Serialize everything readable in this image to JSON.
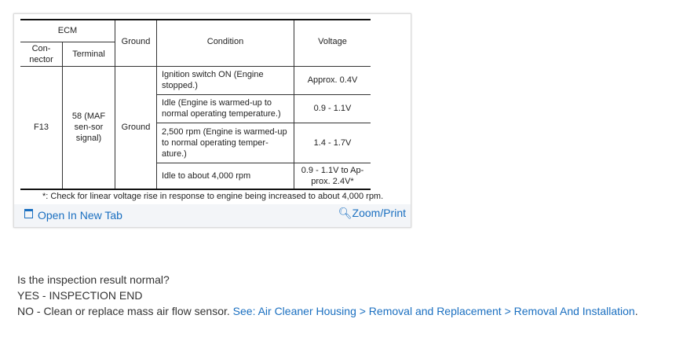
{
  "table": {
    "header": {
      "ecm": "ECM",
      "connector": "Con-\nnector",
      "terminal": "Terminal",
      "ground": "Ground",
      "condition": "Condition",
      "voltage": "Voltage"
    },
    "connector": "F13",
    "terminal": "58 (MAF sen-sor signal)",
    "ground": "Ground",
    "rows": [
      {
        "condition": "Ignition switch ON (Engine stopped.)",
        "voltage": "Approx. 0.4V"
      },
      {
        "condition": "Idle (Engine is warmed-up to normal operating temperature.)",
        "voltage": "0.9 - 1.1V"
      },
      {
        "condition": "2,500 rpm (Engine is warmed-up to normal operating temper-ature.)",
        "voltage": "1.4 - 1.7V"
      },
      {
        "condition": "Idle to about 4,000 rpm",
        "voltage": "0.9 - 1.1V to Ap-prox. 2.4V*"
      }
    ],
    "footnote": "*: Check for linear voltage rise in response to engine being increased to about 4,000 rpm."
  },
  "links": {
    "open_new_tab": "Open In New Tab",
    "zoom_print": "Zoom/Print"
  },
  "question": "Is the inspection result normal?",
  "yes": "YES - INSPECTION END",
  "no_prefix": "NO - Clean or replace mass air flow sensor.",
  "no_link": "See: Air Cleaner Housing > Removal and Replacement > Removal And Installation",
  "no_suffix": "."
}
